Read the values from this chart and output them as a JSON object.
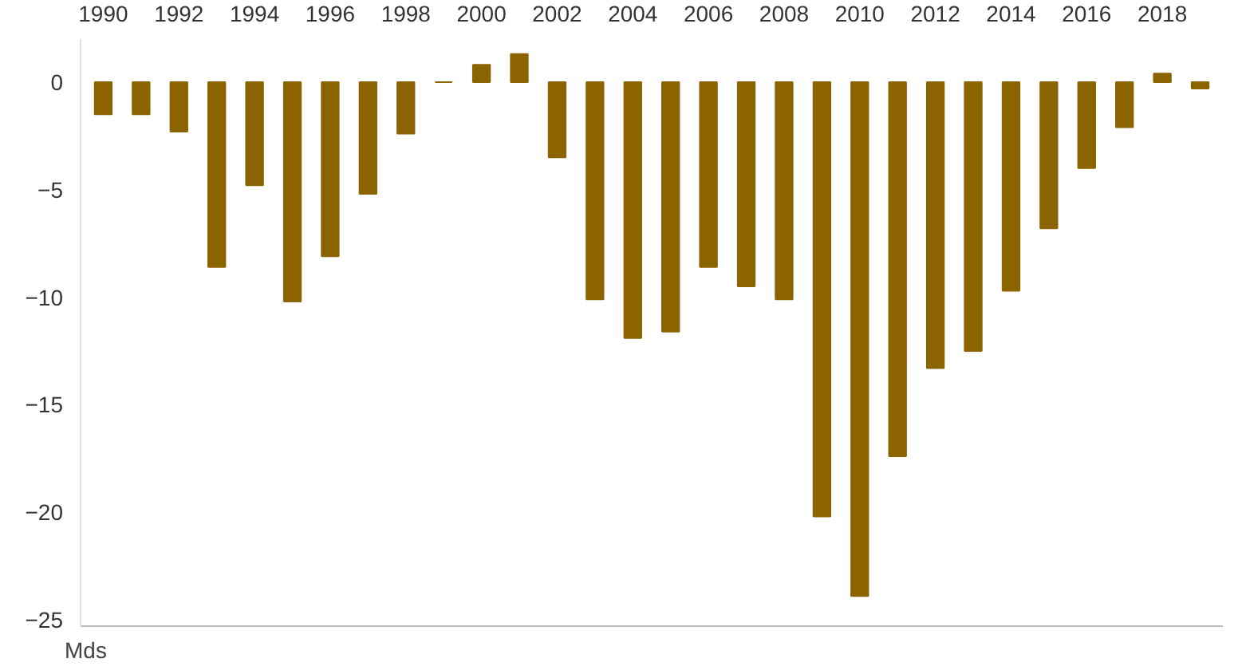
{
  "chart_data": {
    "type": "bar",
    "annotations": [
      "Mds"
    ],
    "categories": [
      "1990",
      null,
      "1992",
      null,
      "1994",
      null,
      "1996",
      null,
      "1998",
      null,
      "2000",
      null,
      "2002",
      null,
      "2004",
      null,
      "2006",
      null,
      "2008",
      null,
      "2010",
      null,
      "2012",
      null,
      "2014",
      null,
      "2016",
      null,
      "2018",
      null
    ],
    "values": [
      -1.5,
      -1.5,
      -2.3,
      -8.6,
      -4.8,
      -10.2,
      -8.1,
      -5.2,
      -2.4,
      0,
      0.8,
      1.3,
      -3.5,
      -10.1,
      -11.9,
      -11.6,
      -8.6,
      -9.5,
      -10.1,
      -20.2,
      -23.9,
      -17.4,
      -13.3,
      -12.5,
      -9.7,
      -6.8,
      -4.0,
      -2.1,
      0.4,
      -0.3
    ],
    "color": "#8b6400",
    "ylim": [
      -25.3,
      2
    ],
    "yticks": [
      -25,
      -20,
      -15,
      -10,
      -5,
      0
    ],
    "grid": false
  }
}
